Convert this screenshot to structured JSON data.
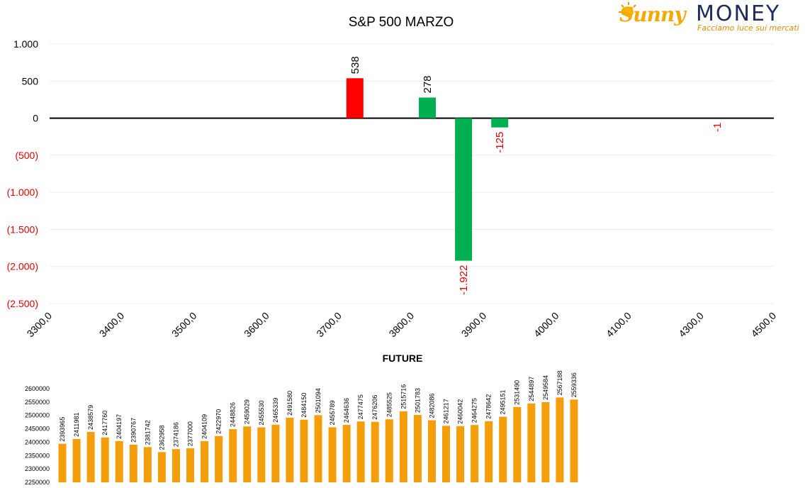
{
  "logo": {
    "brand_left": "Sunny",
    "brand_right": "MONEY",
    "tagline": "Facciamo luce sui mercati"
  },
  "colors": {
    "red": "#ff0000",
    "green": "#00b050",
    "orange": "#f59e0b",
    "negative_label": "#e00000",
    "text": "#000000"
  },
  "chart_data": [
    {
      "type": "bar",
      "title": "S&P 500 MARZO",
      "x_tick_labels": [
        "3300,0",
        "3400,0",
        "3500,0",
        "3600,0",
        "3700,0",
        "3800,0",
        "3900,0",
        "4000,0",
        "4100,0",
        "4300,0",
        "4500,0"
      ],
      "y_tick_labels": [
        "1.000",
        "500",
        "0",
        "(500)",
        "(1.000)",
        "(1.500)",
        "(2.000)",
        "(2.500)"
      ],
      "ylim": [
        -2500,
        1000
      ],
      "y_ticks": [
        1000,
        500,
        0,
        -500,
        -1000,
        -1500,
        -2000,
        -2500
      ],
      "grid": true,
      "bars": [
        {
          "x_index": 4,
          "value": 538,
          "label": "538",
          "color": "red"
        },
        {
          "x_index": 5,
          "value": 278,
          "label": "278",
          "color": "green"
        },
        {
          "x_index": 5.5,
          "value": -1922,
          "label": "-1.922",
          "color": "green"
        },
        {
          "x_index": 6,
          "value": -125,
          "label": "-125",
          "color": "green"
        },
        {
          "x_index": 9,
          "value": -1,
          "label": "-1",
          "color": "green"
        }
      ]
    },
    {
      "type": "bar",
      "title": "FUTURE",
      "ylim": [
        2250000,
        2600000
      ],
      "y_ticks": [
        2250000,
        2300000,
        2350000,
        2400000,
        2450000,
        2500000,
        2550000,
        2600000
      ],
      "y_tick_labels": [
        "2250000",
        "2300000",
        "2350000",
        "2400000",
        "2450000",
        "2500000",
        "2550000",
        "2600000"
      ],
      "values": [
        2393965,
        2411981,
        2438579,
        2417760,
        2404197,
        2390767,
        2381742,
        2362958,
        2374186,
        2377000,
        2404109,
        2422970,
        2448826,
        2459029,
        2455530,
        2465339,
        2491580,
        2484150,
        2501094,
        2455789,
        2464636,
        2477475,
        2476206,
        2485525,
        2515716,
        2501783,
        2482086,
        2461217,
        2460042,
        2464275,
        2478642,
        2495151,
        2531490,
        2544897,
        2549584,
        2567188,
        2559336
      ]
    }
  ]
}
